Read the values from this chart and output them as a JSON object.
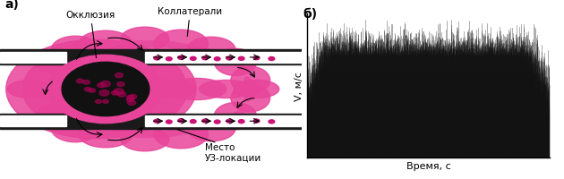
{
  "fig_width": 6.3,
  "fig_height": 2.01,
  "dpi": 100,
  "label_a": "а)",
  "label_b": "б)",
  "ylabel": "V, м/с",
  "xlabel": "Время, с",
  "annotation_occlusion": "Окклюзия",
  "annotation_collateral": "Коллатерали",
  "annotation_location": "Место\nУЗ-локации",
  "bg_color": "#ffffff",
  "signal_color": "#111111",
  "noise_seed": 42,
  "n_points": 3000,
  "signal_base": 0.03,
  "signal_envelope_peaks": [
    0.18,
    0.14,
    0.22,
    0.15,
    0.2,
    0.13,
    0.19,
    0.16,
    0.18,
    0.14
  ],
  "noise_amplitude": 0.04,
  "pink_color": "#E8449A",
  "dark_color": "#1a1a1a",
  "ylim_max": 1.0,
  "signal_ylim_max": 0.5
}
